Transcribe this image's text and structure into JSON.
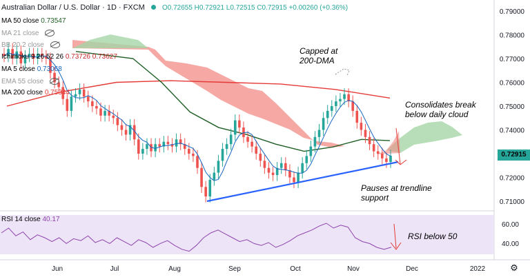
{
  "header": {
    "title": "Australian Dollar / U.S. Dollar · 1D · FXCM",
    "ohlc": "O0.72655 H0.72921 L0.72515 C0.72915 +0.00260 (+0.36%)"
  },
  "indicators": [
    {
      "label": "MA 50 close",
      "value": "0.73547",
      "color": "#1e5e24"
    },
    {
      "label": "MA 21 close",
      "value": "",
      "color": "#999999"
    },
    {
      "label": "BB 20 2 close",
      "value": "",
      "color": "#999999"
    },
    {
      "label": "Ichimoku 9 26 52 26",
      "value": "0.73726 0.73627",
      "color": "#c62828"
    },
    {
      "label": "MA 5 close",
      "value": "0.73068",
      "color": "#1565c0"
    },
    {
      "label": "EMA 55 close",
      "value": "",
      "color": "#999999"
    },
    {
      "label": "MA 200 close",
      "value": "0.75344",
      "color": "#e53935"
    }
  ],
  "rsi": {
    "label": "RSI 14 close",
    "value": "40.17"
  },
  "annotations": {
    "capped": "Capped at\n200-DMA",
    "consolidates": "Consolidates break\nbelow daily cloud",
    "pauses": "Pauses at trendline\nsupport",
    "rsi_below": "RSI below 50"
  },
  "last_price": "0.72915",
  "colors": {
    "up": "#26a69a",
    "down": "#ef5350",
    "cloud_red": "#f28b86",
    "cloud_green": "#a5d6a7",
    "rsi": "#8e44ad",
    "trend": "#2962ff"
  },
  "chart_data": {
    "type": "candlestick",
    "y_ticks": [
      0.79,
      0.78,
      0.77,
      0.76,
      0.75,
      0.74,
      0.73,
      0.72,
      0.71
    ],
    "y_tick_labels": [
      "0.79000",
      "0.78000",
      "0.77000",
      "0.76000",
      "0.75000",
      "0.74000",
      "0.73000",
      "0.72000",
      "0.71000"
    ],
    "x_labels": [
      "Jun",
      "Jul",
      "Aug",
      "Sep",
      "Oct",
      "Nov",
      "Dec",
      "2022"
    ],
    "rsi_ticks": [
      "60.00",
      "40.00"
    ],
    "close_path": [
      0.771,
      0.774,
      0.77,
      0.773,
      0.768,
      0.771,
      0.772,
      0.77,
      0.772,
      0.771,
      0.77,
      0.764,
      0.76,
      0.758,
      0.753,
      0.748,
      0.754,
      0.755,
      0.757,
      0.754,
      0.752,
      0.75,
      0.749,
      0.746,
      0.748,
      0.746,
      0.745,
      0.742,
      0.74,
      0.738,
      0.742,
      0.736,
      0.73,
      0.732,
      0.734,
      0.731,
      0.734,
      0.733,
      0.735,
      0.734,
      0.733,
      0.736,
      0.734,
      0.732,
      0.73,
      0.729,
      0.724,
      0.716,
      0.712,
      0.719,
      0.722,
      0.727,
      0.732,
      0.734,
      0.738,
      0.744,
      0.741,
      0.737,
      0.735,
      0.733,
      0.73,
      0.727,
      0.724,
      0.722,
      0.721,
      0.724,
      0.726,
      0.723,
      0.72,
      0.718,
      0.722,
      0.726,
      0.729,
      0.733,
      0.737,
      0.74,
      0.745,
      0.748,
      0.75,
      0.752,
      0.753,
      0.755,
      0.752,
      0.748,
      0.743,
      0.74,
      0.737,
      0.734,
      0.731,
      0.73,
      0.728,
      0.7265,
      0.7291
    ],
    "ma200": [
      0.75,
      0.756,
      0.76,
      0.7607,
      0.76,
      0.7593,
      0.757,
      0.7534
    ],
    "ma50": [
      0.773,
      0.7715,
      0.77,
      0.76,
      0.7475,
      0.741,
      0.738,
      0.734,
      0.731,
      0.7328,
      0.736,
      0.7355
    ],
    "rsi_values": [
      55,
      60,
      52,
      56,
      48,
      53,
      50,
      46,
      50,
      44,
      49,
      47,
      52,
      45,
      48,
      44,
      50,
      46,
      42,
      48,
      45,
      40,
      44,
      47,
      42,
      38,
      36,
      42,
      50,
      55,
      58,
      54,
      50,
      46,
      48,
      44,
      42,
      45,
      40,
      43,
      47,
      52,
      55,
      58,
      62,
      65,
      60,
      63,
      61,
      50,
      46,
      44,
      40,
      38,
      40.17
    ]
  }
}
